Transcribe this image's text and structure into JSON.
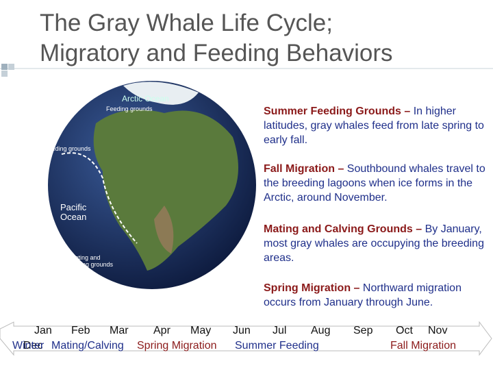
{
  "title": [
    "The Gray Whale Life Cycle;",
    "Migratory and Feeding Behaviors"
  ],
  "globe": {
    "labels": [
      "Arctic Ocean",
      "Feeding grounds",
      "Feeding grounds",
      "Pacific Ocean",
      "Mating and calving grounds"
    ]
  },
  "sections": [
    {
      "heading": "Summer Feeding Grounds –",
      "text": "In higher latitudes, gray whales feed from late spring to early fall."
    },
    {
      "heading": "Fall Migration –",
      "text": "Southbound whales travel to the breeding lagoons when ice forms in the Arctic, around November."
    },
    {
      "heading": "Mating and Calving Grounds –",
      "text": "By January, most gray whales are occupying the breeding areas."
    },
    {
      "heading": "Spring Migration –",
      "text": "Northward migration occurs from January through June."
    }
  ],
  "timeline": {
    "months": [
      "Jan",
      "Feb",
      "Mar",
      "Apr",
      "May",
      "Jun",
      "Jul",
      "Aug",
      "Sep",
      "Oct",
      "Nov",
      "Dec"
    ],
    "phases": [
      "Winter",
      "Mating/Calving",
      "Spring Migration",
      "Summer Feeding",
      "Fall Migration"
    ]
  }
}
